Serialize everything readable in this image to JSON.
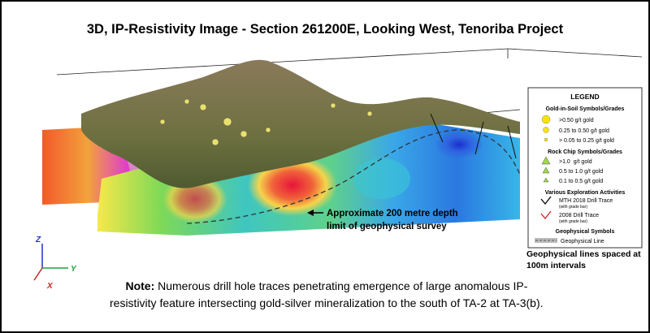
{
  "title": "3D, IP-Resistivity Image - Section 261200E, Looking West, Tenoriba Project",
  "annotation": [
    "Approximate 200 metre depth",
    "limit of geophysical survey"
  ],
  "axes": {
    "z": "Z",
    "y": "Y",
    "x": "X"
  },
  "legend": {
    "title": "LEGEND",
    "soil": {
      "heading": "Gold-in-Soil Symbols/Grades",
      "items": [
        ">0.50 g/t gold",
        "0.25 to 0.50 g/t gold",
        "> 0.05 to 0.25 g/t gold"
      ]
    },
    "rock": {
      "heading": "Rock Chip Symbols/Grades",
      "items": [
        ">1.0  g/t gold",
        "0.5 to 1.0 g/t gold",
        "0.1 to 0.5 g/t gold"
      ]
    },
    "activities": {
      "heading": "Various Exploration Activities",
      "items": [
        {
          "label": "MTH 2018 Drill Trace",
          "sub": "(with grade bar)"
        },
        {
          "label": "2008 Drill Trace",
          "sub": "(with grade bar)"
        }
      ]
    },
    "geophysical": {
      "heading": "Geophysical Symbols",
      "items": [
        "Geophysical Line"
      ]
    }
  },
  "spacing_note": [
    "Geophysical lines spaced at",
    "100m intervals"
  ],
  "note": {
    "label": "Note:",
    "lines": [
      " Numerous drill hole traces penetrating emergence of large anomalous IP-",
      "resistivity feature intersecting gold-silver mineralization to the south of TA-2 at TA-3(b)."
    ]
  }
}
